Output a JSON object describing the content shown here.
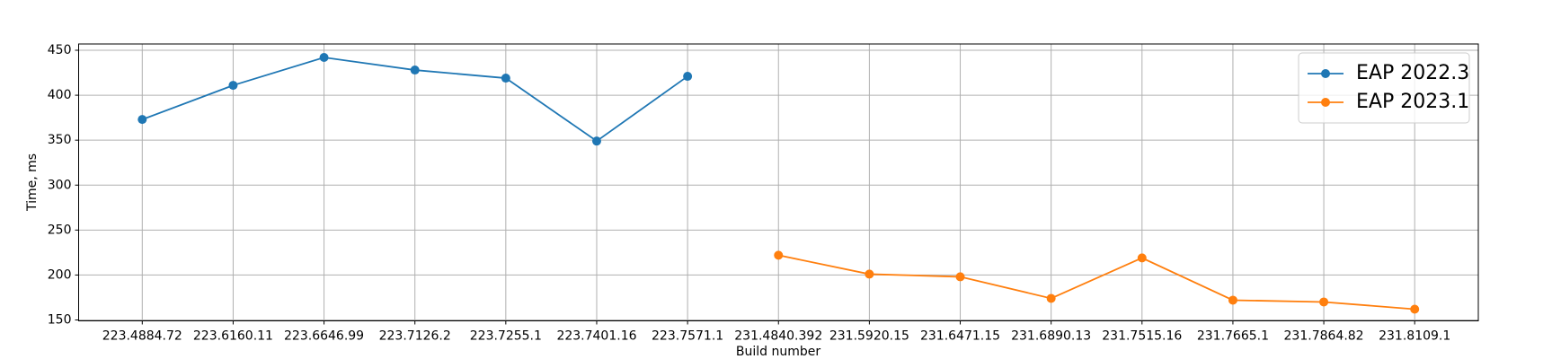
{
  "chart_data": {
    "type": "line",
    "x_label": "Build number",
    "y_label": "Time, ms",
    "categories": [
      "223.4884.72",
      "223.6160.11",
      "223.6646.99",
      "223.7126.2",
      "223.7255.1",
      "223.7401.16",
      "223.7571.1",
      "231.4840.392",
      "231.5920.15",
      "231.6471.15",
      "231.6890.13",
      "231.7515.16",
      "231.7665.1",
      "231.7864.82",
      "231.8109.1"
    ],
    "series": [
      {
        "name": "EAP 2022.3",
        "color": "#1f77b4",
        "values": [
          373,
          411,
          442,
          428,
          419,
          349,
          421,
          null,
          null,
          null,
          null,
          null,
          null,
          null,
          null
        ]
      },
      {
        "name": "EAP 2023.1",
        "color": "#ff7f0e",
        "values": [
          null,
          null,
          null,
          null,
          null,
          null,
          null,
          222,
          201,
          198,
          174,
          219,
          172,
          170,
          162
        ]
      }
    ],
    "ylim": [
      149,
      457
    ],
    "yticks": [
      150,
      200,
      250,
      300,
      350,
      400,
      450
    ],
    "grid": true,
    "legend": "upper right"
  }
}
